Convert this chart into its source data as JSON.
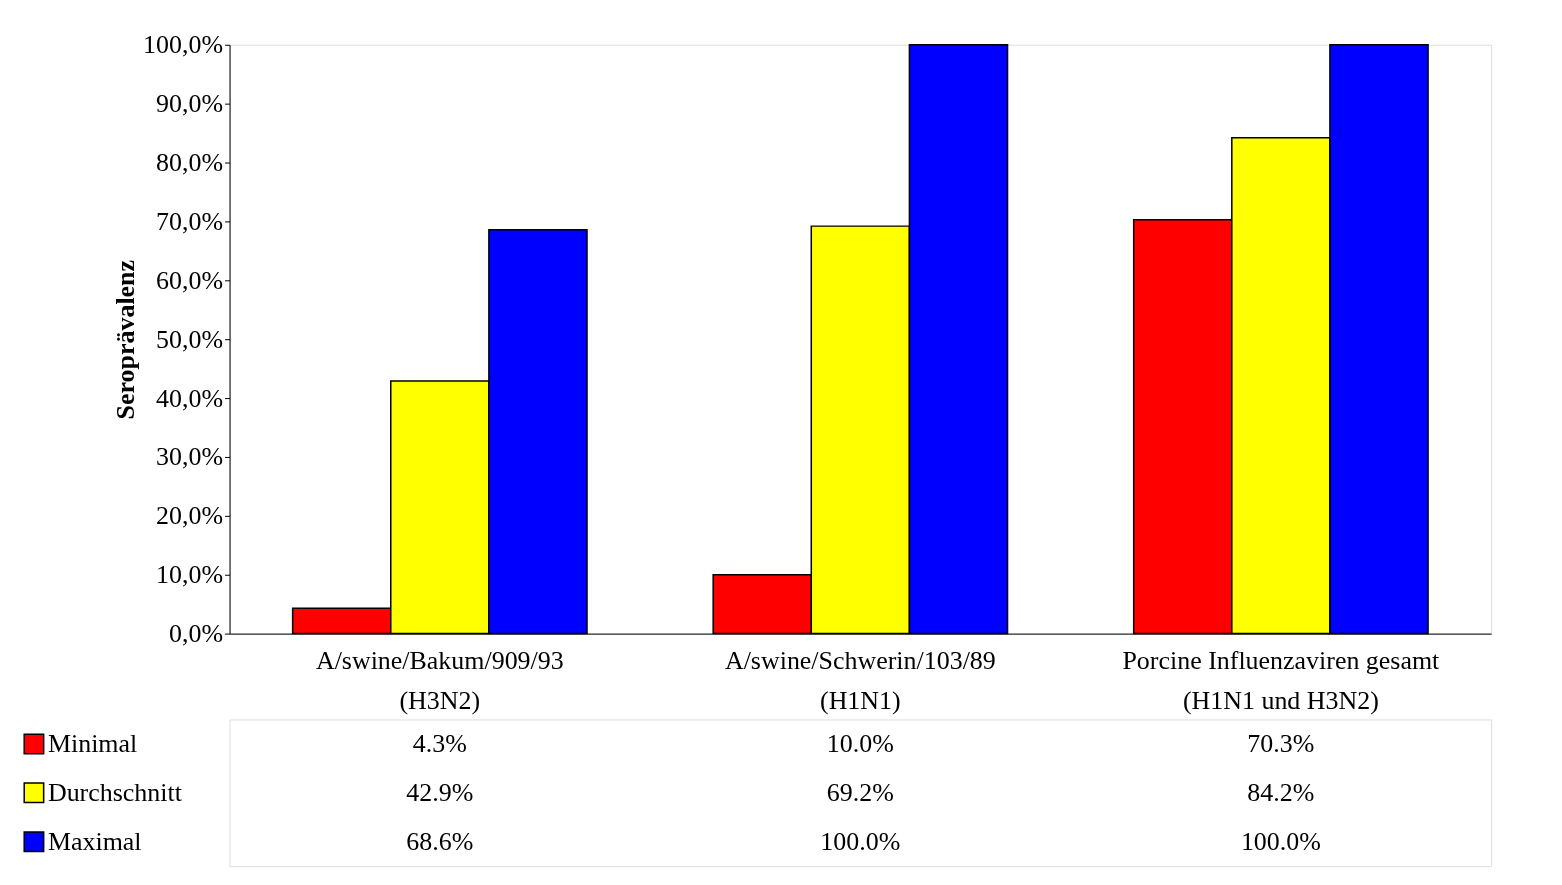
{
  "chart_data": {
    "type": "bar",
    "ylabel": "Seroprävalenz",
    "categories": [
      "A/swine/Bakum/909/93\n(H3N2)",
      "A/swine/Schwerin/103/89\n(H1N1)",
      "Porcine Influenzaviren gesamt\n(H1N1 und H3N2)"
    ],
    "series": [
      {
        "name": "Minimal",
        "color": "#ff0000",
        "values": [
          4.3,
          10.0,
          70.3
        ],
        "value_labels": [
          "4.3%",
          "10.0%",
          "70.3%"
        ]
      },
      {
        "name": "Durchschnitt",
        "color": "#ffff00",
        "values": [
          42.9,
          69.2,
          84.2
        ],
        "value_labels": [
          "42.9%",
          "69.2%",
          "84.2%"
        ]
      },
      {
        "name": "Maximal",
        "color": "#0000ff",
        "values": [
          68.6,
          100.0,
          100.0
        ],
        "value_labels": [
          "68.6%",
          "100.0%",
          "100.0%"
        ]
      }
    ],
    "ylim": [
      0,
      100
    ],
    "yticks": [
      {
        "value": 0,
        "label": "0,0%"
      },
      {
        "value": 10,
        "label": "10,0%"
      },
      {
        "value": 20,
        "label": "20,0%"
      },
      {
        "value": 30,
        "label": "30,0%"
      },
      {
        "value": 40,
        "label": "40,0%"
      },
      {
        "value": 50,
        "label": "50,0%"
      },
      {
        "value": 60,
        "label": "60,0%"
      },
      {
        "value": 70,
        "label": "70,0%"
      },
      {
        "value": 80,
        "label": "80,0%"
      },
      {
        "value": 90,
        "label": "90,0%"
      },
      {
        "value": 100,
        "label": "100,0%"
      }
    ],
    "legend": "bottom left",
    "grid": false
  }
}
